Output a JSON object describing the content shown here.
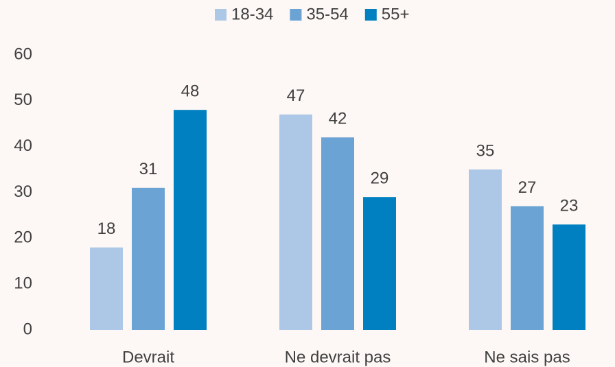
{
  "chart_data": {
    "type": "bar",
    "categories": [
      "Devrait",
      "Ne devrait pas",
      "Ne sais pas"
    ],
    "series": [
      {
        "name": "18-34",
        "color": "#adc8e6",
        "values": [
          18,
          47,
          35
        ]
      },
      {
        "name": "35-54",
        "color": "#6aa3d4",
        "values": [
          31,
          42,
          27
        ]
      },
      {
        "name": "55+",
        "color": "#0080c0",
        "values": [
          48,
          29,
          23
        ]
      }
    ],
    "ylim": [
      0,
      60
    ],
    "yticks": [
      0,
      10,
      20,
      30,
      40,
      50,
      60
    ],
    "grid": false,
    "legend": "top"
  }
}
